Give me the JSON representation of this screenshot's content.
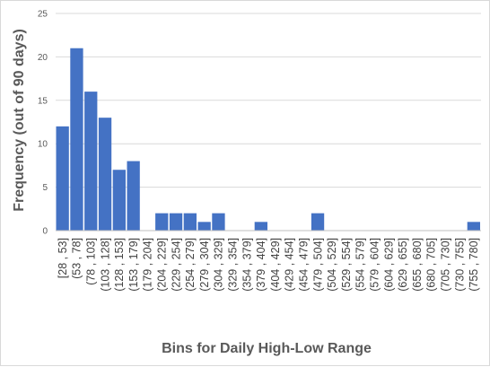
{
  "colors": {
    "bar": "#4472c4",
    "grid": "#d9d9d9",
    "axis": "#bfbfbf",
    "text": "#595959"
  },
  "chart_data": {
    "type": "bar",
    "title": "",
    "xlabel": "Bins for Daily High-Low Range",
    "ylabel": "Frequency (out of 90 days)",
    "ylim": [
      0,
      25
    ],
    "yticks": [
      0,
      5,
      10,
      15,
      20,
      25
    ],
    "grid": true,
    "legend": "none",
    "categories": [
      "[28 , 53]",
      "(53 , 78]",
      "(78 , 103]",
      "(103 , 128]",
      "(128 , 153]",
      "(153 , 179]",
      "(179 , 204]",
      "(204 , 229]",
      "(229 , 254]",
      "(254 , 279]",
      "(279 , 304]",
      "(304 , 329]",
      "(329 , 354]",
      "(354 , 379]",
      "(379 , 404]",
      "(404 , 429]",
      "(429 , 454]",
      "(454 , 479]",
      "(479 , 504]",
      "(504 , 529]",
      "(529 , 554]",
      "(554 , 579]",
      "(579 , 604]",
      "(604 , 629]",
      "(629 , 655]",
      "(655 , 680]",
      "(680 , 705]",
      "(705 , 730]",
      "(730 , 755]",
      "(755 , 780]"
    ],
    "values": [
      12,
      21,
      16,
      13,
      7,
      8,
      0,
      2,
      2,
      2,
      1,
      2,
      0,
      0,
      1,
      0,
      0,
      0,
      2,
      0,
      0,
      0,
      0,
      0,
      0,
      0,
      0,
      0,
      0,
      1
    ]
  }
}
